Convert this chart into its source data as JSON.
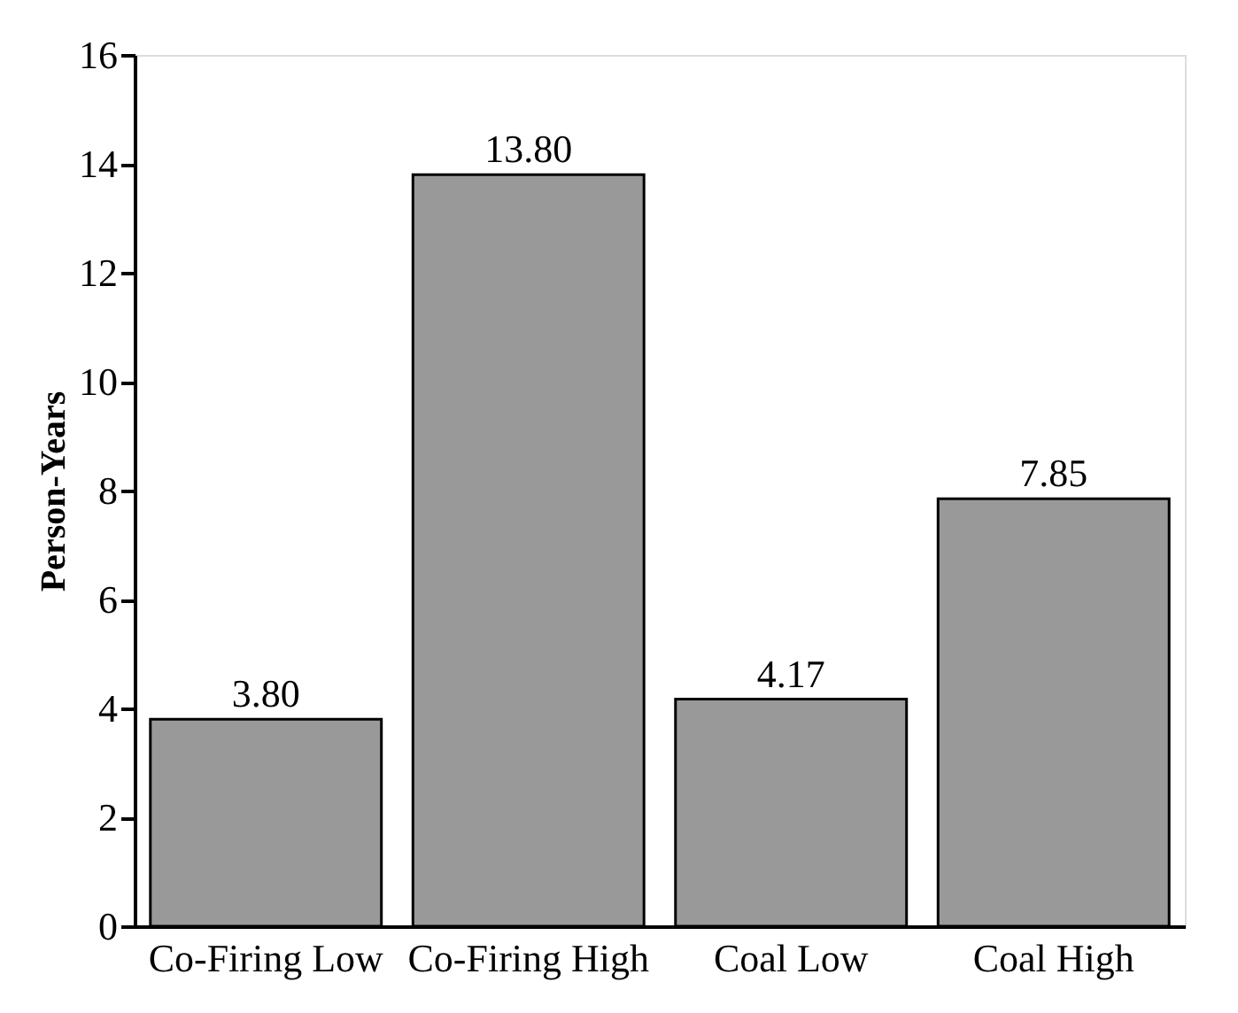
{
  "chart_data": {
    "type": "bar",
    "ylabel": "Person-Years",
    "categories": [
      "Co-Firing Low",
      "Co-Firing High",
      "Coal Low",
      "Coal High"
    ],
    "values": [
      3.8,
      13.8,
      4.17,
      7.85
    ],
    "value_labels": [
      "3.80",
      "13.80",
      "4.17",
      "7.85"
    ],
    "color": "#999999",
    "ylim": [
      0,
      16
    ],
    "yticks": [
      0,
      2,
      4,
      6,
      8,
      10,
      12,
      14,
      16
    ],
    "grid": false
  }
}
